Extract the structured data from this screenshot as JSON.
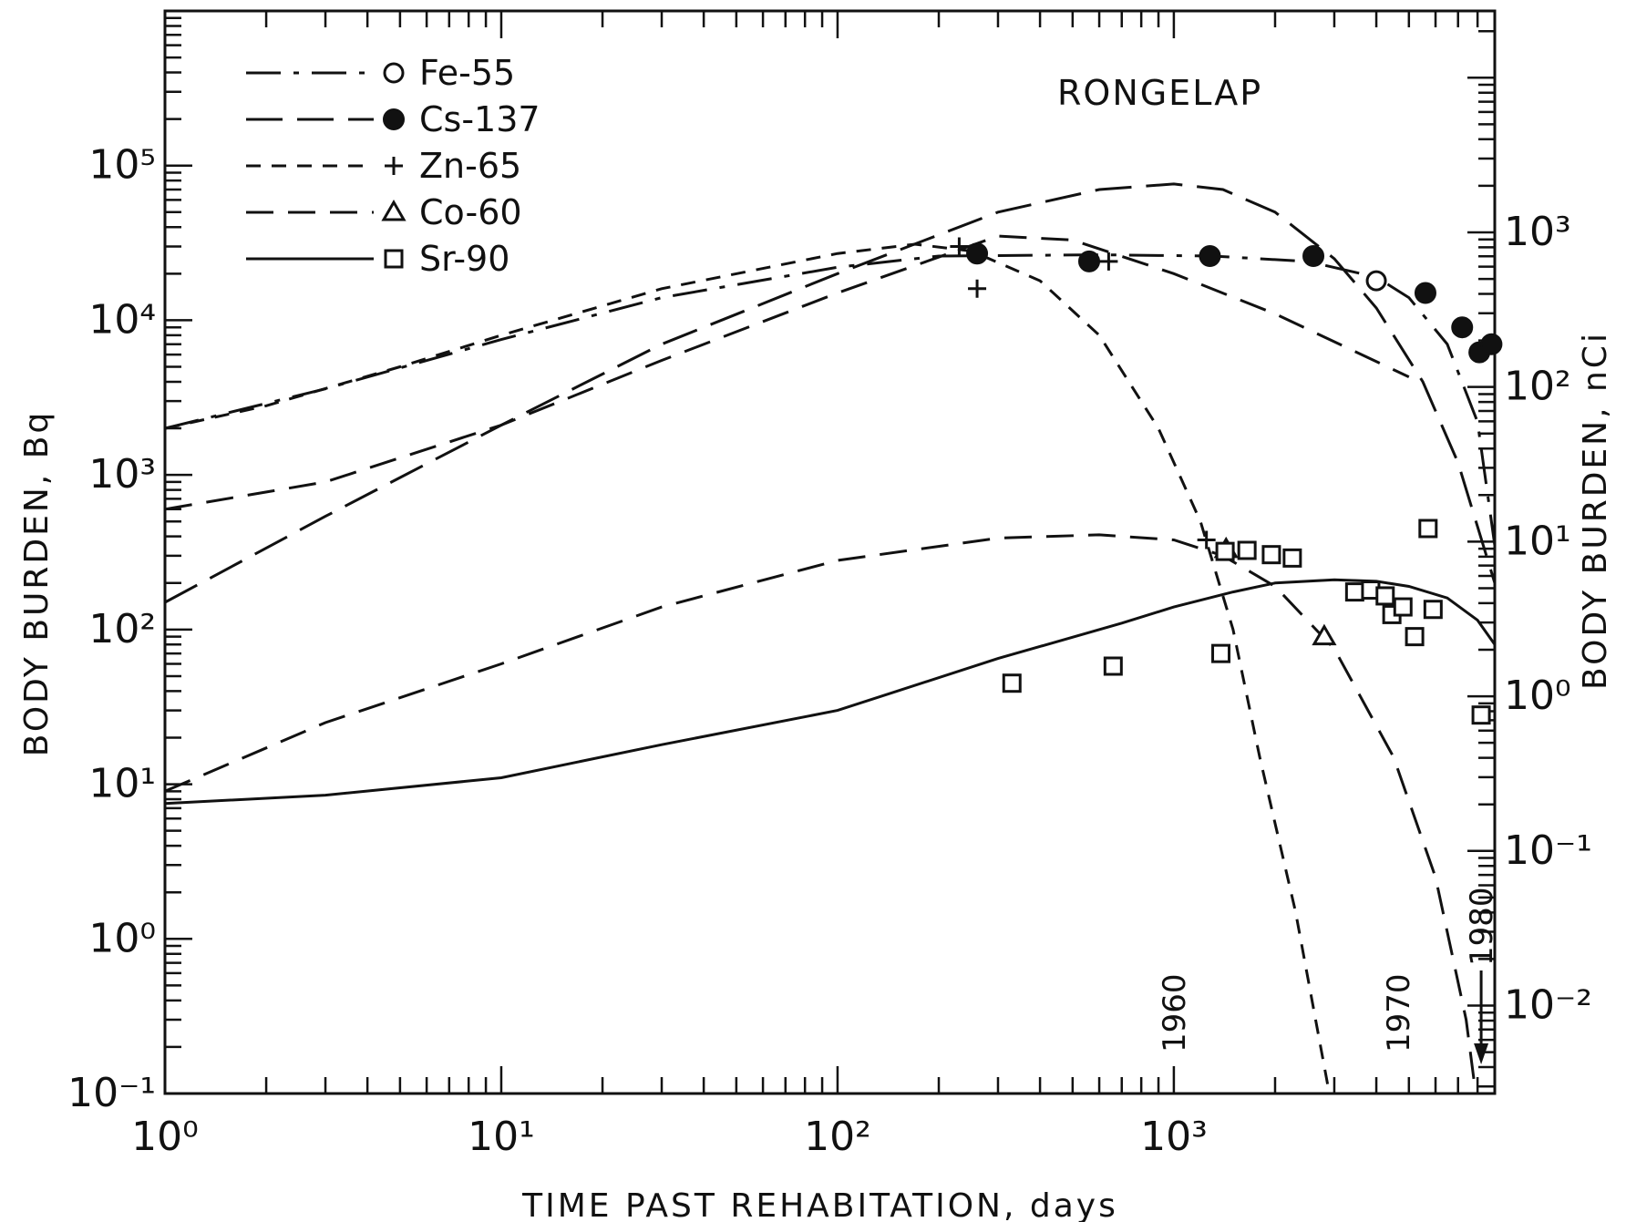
{
  "chart_data": {
    "type": "line",
    "title": "",
    "annotation": "RONGELAP",
    "xlabel": "TIME PAST REHABITATION, days",
    "ylabel": "BODY BURDEN, Bq",
    "ylabel_right": "BODY BURDEN, nCi",
    "x_scale": "log",
    "y_scale": "log",
    "xlim": [
      1,
      9000
    ],
    "ylim": [
      0.1,
      1000000
    ],
    "y_right_lim": [
      0.0027,
      27027
    ],
    "x_ticks": [
      {
        "value": 1,
        "label": "10⁰"
      },
      {
        "value": 10,
        "label": "10¹"
      },
      {
        "value": 100,
        "label": "10²"
      },
      {
        "value": 1000,
        "label": "10³"
      }
    ],
    "y_ticks": [
      {
        "value": 0.1,
        "label": "10⁻¹"
      },
      {
        "value": 1,
        "label": "10⁰"
      },
      {
        "value": 10,
        "label": "10¹"
      },
      {
        "value": 100,
        "label": "10²"
      },
      {
        "value": 1000,
        "label": "10³"
      },
      {
        "value": 10000,
        "label": "10⁴"
      },
      {
        "value": 100000,
        "label": "10⁵"
      }
    ],
    "y_right_ticks": [
      {
        "value": 0.01,
        "label": "10⁻²"
      },
      {
        "value": 0.1,
        "label": "10⁻¹"
      },
      {
        "value": 1,
        "label": "10⁰"
      },
      {
        "value": 10,
        "label": "10¹"
      },
      {
        "value": 100,
        "label": "10²"
      },
      {
        "value": 1000,
        "label": "10³"
      }
    ],
    "legend_position": "top-left",
    "grid": false,
    "series": [
      {
        "name": "Fe-55",
        "marker": "open-circle",
        "line": "dash-dot-like",
        "curve": [
          [
            1,
            2000
          ],
          [
            3,
            3600
          ],
          [
            10,
            7500
          ],
          [
            30,
            14000
          ],
          [
            100,
            22000
          ],
          [
            200,
            26000
          ],
          [
            600,
            26500
          ],
          [
            1300,
            26000
          ],
          [
            2500,
            24000
          ],
          [
            4000,
            19000
          ],
          [
            5000,
            14000
          ],
          [
            6500,
            7000
          ],
          [
            8000,
            2200
          ],
          [
            9000,
            350
          ]
        ],
        "points": [
          [
            4000,
            18000
          ]
        ]
      },
      {
        "name": "Cs-137",
        "marker": "filled-circle",
        "line": "long-dash",
        "curve": [
          [
            1,
            150
          ],
          [
            3,
            540
          ],
          [
            10,
            2100
          ],
          [
            30,
            7000
          ],
          [
            100,
            20000
          ],
          [
            300,
            50000
          ],
          [
            600,
            70000
          ],
          [
            1000,
            76000
          ],
          [
            1400,
            70000
          ],
          [
            2000,
            50000
          ],
          [
            3000,
            25000
          ],
          [
            4000,
            12000
          ],
          [
            5500,
            4000
          ],
          [
            7000,
            1200
          ],
          [
            9000,
            200
          ]
        ],
        "points": [
          [
            260,
            27000
          ],
          [
            560,
            24000
          ],
          [
            1280,
            26000
          ],
          [
            2600,
            26000
          ],
          [
            5600,
            15000
          ],
          [
            7200,
            9000
          ],
          [
            8100,
            6200
          ],
          [
            8800,
            7000
          ]
        ]
      },
      {
        "name": "Zn-65",
        "marker": "plus",
        "line": "short-dash",
        "curve": [
          [
            1,
            2000
          ],
          [
            2,
            2800
          ],
          [
            5,
            5000
          ],
          [
            10,
            8000
          ],
          [
            30,
            16000
          ],
          [
            100,
            27000
          ],
          [
            170,
            31000
          ],
          [
            250,
            28000
          ],
          [
            400,
            18000
          ],
          [
            600,
            8000
          ],
          [
            900,
            2000
          ],
          [
            1200,
            500
          ],
          [
            1500,
            100
          ],
          [
            1800,
            15
          ],
          [
            2300,
            1.5
          ],
          [
            2900,
            0.1
          ]
        ],
        "points": [
          [
            230,
            30000
          ],
          [
            260,
            16000
          ],
          [
            640,
            24000
          ],
          [
            1250,
            380
          ]
        ]
      },
      {
        "name": "Co-60",
        "marker": "open-triangle",
        "line": "dash",
        "curve": [
          [
            1,
            600
          ],
          [
            3,
            900
          ],
          [
            10,
            2100
          ],
          [
            30,
            5500
          ],
          [
            100,
            15000
          ],
          [
            300,
            35000
          ],
          [
            500,
            33000
          ],
          [
            1000,
            20000
          ],
          [
            2000,
            11000
          ],
          [
            5000,
            4300
          ]
        ],
        "curve2": [
          [
            1,
            9
          ],
          [
            3,
            25
          ],
          [
            10,
            60
          ],
          [
            30,
            140
          ],
          [
            100,
            280
          ],
          [
            300,
            390
          ],
          [
            600,
            410
          ],
          [
            1000,
            380
          ],
          [
            1400,
            300
          ],
          [
            2000,
            190
          ],
          [
            3000,
            75
          ],
          [
            4500,
            15
          ],
          [
            6000,
            2.5
          ],
          [
            7400,
            0.3
          ],
          [
            7900,
            0.1
          ]
        ],
        "points": [
          [
            1430,
            330
          ],
          [
            2800,
            90
          ]
        ]
      },
      {
        "name": "Sr-90",
        "marker": "open-square",
        "line": "solid",
        "curve": [
          [
            1,
            7.5
          ],
          [
            3,
            8.5
          ],
          [
            10,
            11
          ],
          [
            30,
            18
          ],
          [
            100,
            30
          ],
          [
            300,
            65
          ],
          [
            700,
            110
          ],
          [
            1000,
            140
          ],
          [
            1500,
            175
          ],
          [
            2000,
            200
          ],
          [
            3000,
            210
          ],
          [
            4000,
            205
          ],
          [
            5000,
            190
          ],
          [
            6500,
            160
          ],
          [
            8000,
            115
          ],
          [
            9000,
            80
          ]
        ],
        "points": [
          [
            330,
            45
          ],
          [
            660,
            58
          ],
          [
            1380,
            70
          ],
          [
            1420,
            320
          ],
          [
            1650,
            325
          ],
          [
            1950,
            305
          ],
          [
            2250,
            290
          ],
          [
            3450,
            175
          ],
          [
            3850,
            180
          ],
          [
            4250,
            165
          ],
          [
            4450,
            125
          ],
          [
            4800,
            140
          ],
          [
            5200,
            90
          ],
          [
            5700,
            450
          ],
          [
            5900,
            135
          ],
          [
            8200,
            28
          ]
        ]
      }
    ],
    "year_markers": [
      {
        "label": "1960",
        "x": 1000
      },
      {
        "label": "1970",
        "x": 4650
      },
      {
        "label": "1980",
        "x": 8200
      }
    ]
  }
}
